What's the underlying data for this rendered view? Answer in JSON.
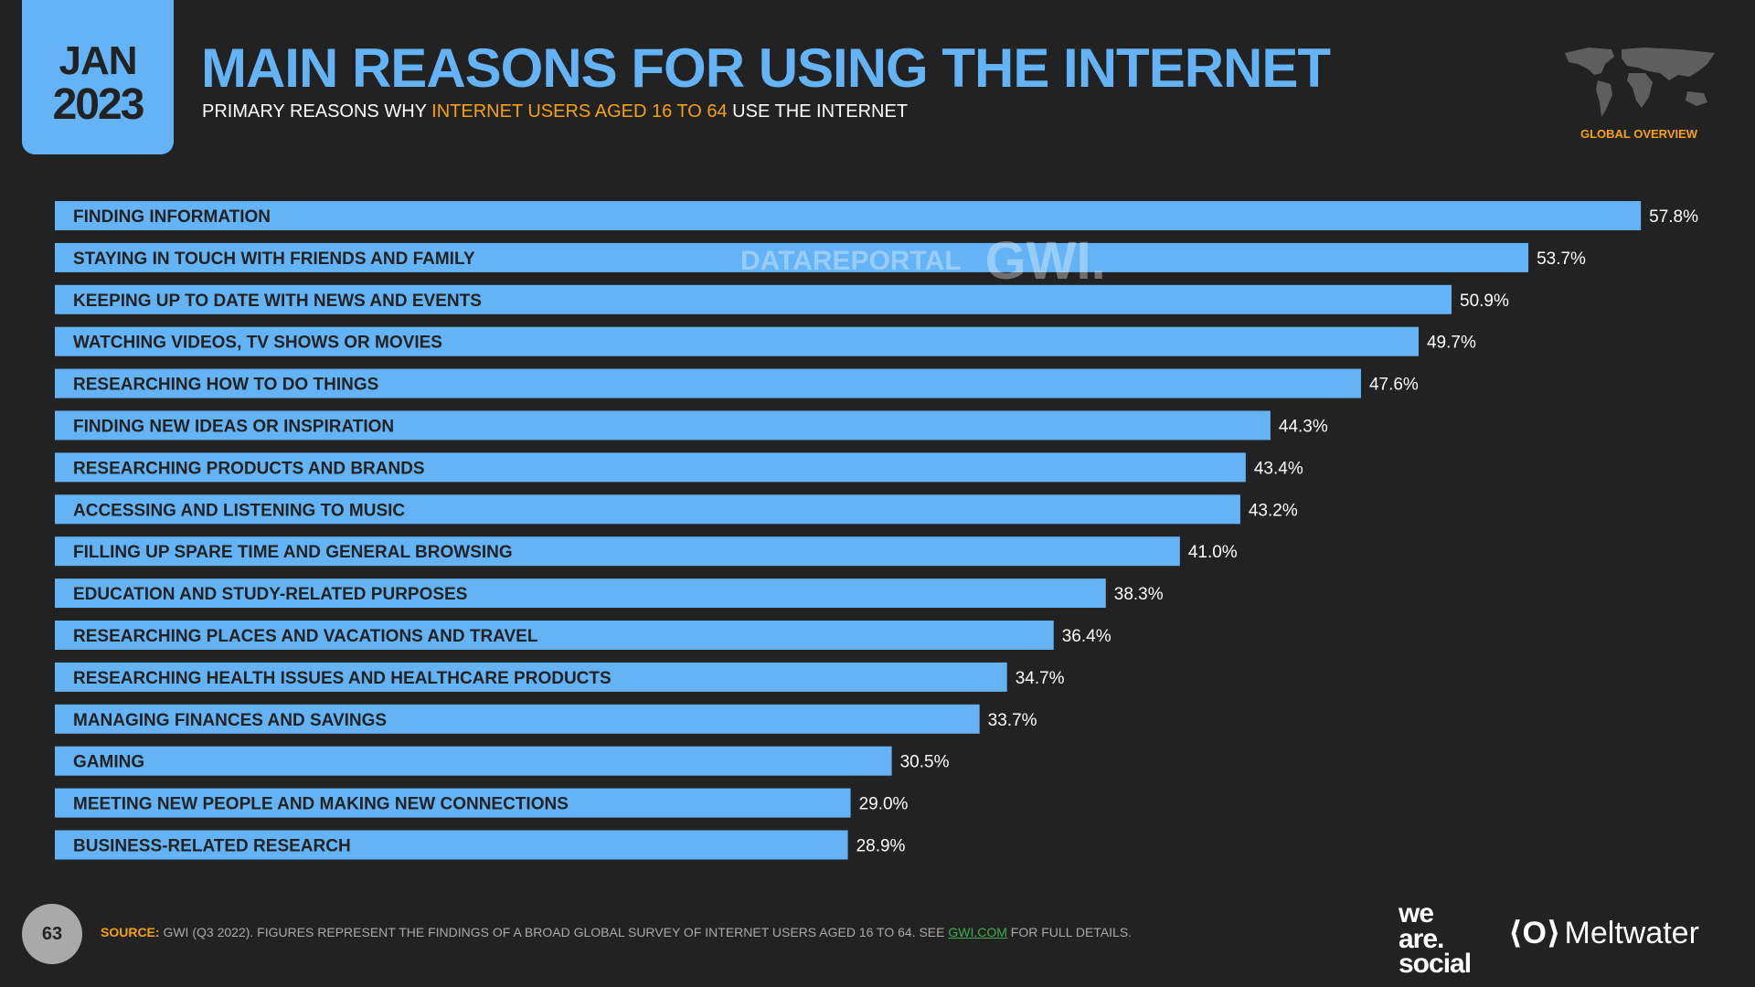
{
  "header": {
    "month": "JAN",
    "year": "2023",
    "title": "MAIN REASONS FOR USING THE INTERNET",
    "subtitle_pre": "PRIMARY REASONS WHY ",
    "subtitle_highlight": "INTERNET USERS AGED 16 TO 64",
    "subtitle_post": " USE THE INTERNET",
    "region": "GLOBAL OVERVIEW"
  },
  "watermark": {
    "datareportal": "DATAREPORTAL",
    "gwi": "GWI."
  },
  "colors": {
    "bar": "#63b3f6",
    "background": "#222222",
    "accent": "#f5a20a"
  },
  "chart_data": {
    "type": "bar",
    "orientation": "horizontal",
    "categories": [
      "FINDING INFORMATION",
      "STAYING IN TOUCH WITH FRIENDS AND FAMILY",
      "KEEPING UP TO DATE WITH NEWS AND EVENTS",
      "WATCHING VIDEOS, TV SHOWS OR MOVIES",
      "RESEARCHING HOW TO DO THINGS",
      "FINDING NEW IDEAS OR INSPIRATION",
      "RESEARCHING PRODUCTS AND BRANDS",
      "ACCESSING AND LISTENING TO MUSIC",
      "FILLING UP SPARE TIME AND GENERAL BROWSING",
      "EDUCATION AND STUDY-RELATED PURPOSES",
      "RESEARCHING PLACES AND VACATIONS AND TRAVEL",
      "RESEARCHING HEALTH ISSUES AND HEALTHCARE PRODUCTS",
      "MANAGING FINANCES AND SAVINGS",
      "GAMING",
      "MEETING NEW PEOPLE AND MAKING NEW CONNECTIONS",
      "BUSINESS-RELATED RESEARCH"
    ],
    "values": [
      57.8,
      53.7,
      50.9,
      49.7,
      47.6,
      44.3,
      43.4,
      43.2,
      41.0,
      38.3,
      36.4,
      34.7,
      33.7,
      30.5,
      29.0,
      28.9
    ],
    "value_labels": [
      "57.8%",
      "53.7%",
      "50.9%",
      "49.7%",
      "47.6%",
      "44.3%",
      "43.4%",
      "43.2%",
      "41.0%",
      "38.3%",
      "36.4%",
      "34.7%",
      "33.7%",
      "30.5%",
      "29.0%",
      "28.9%"
    ],
    "unit": "%",
    "grid": false,
    "legend": "none"
  },
  "footer": {
    "page": "63",
    "source_label": "SOURCE:",
    "source_text": " GWI (Q3 2022). FIGURES REPRESENT THE FINDINGS OF A BROAD GLOBAL SURVEY OF INTERNET USERS AGED 16 TO 64. SEE ",
    "source_link": "GWI.COM",
    "source_end": " FOR FULL DETAILS.",
    "logo1": "we are. social",
    "logo2": "Meltwater"
  }
}
